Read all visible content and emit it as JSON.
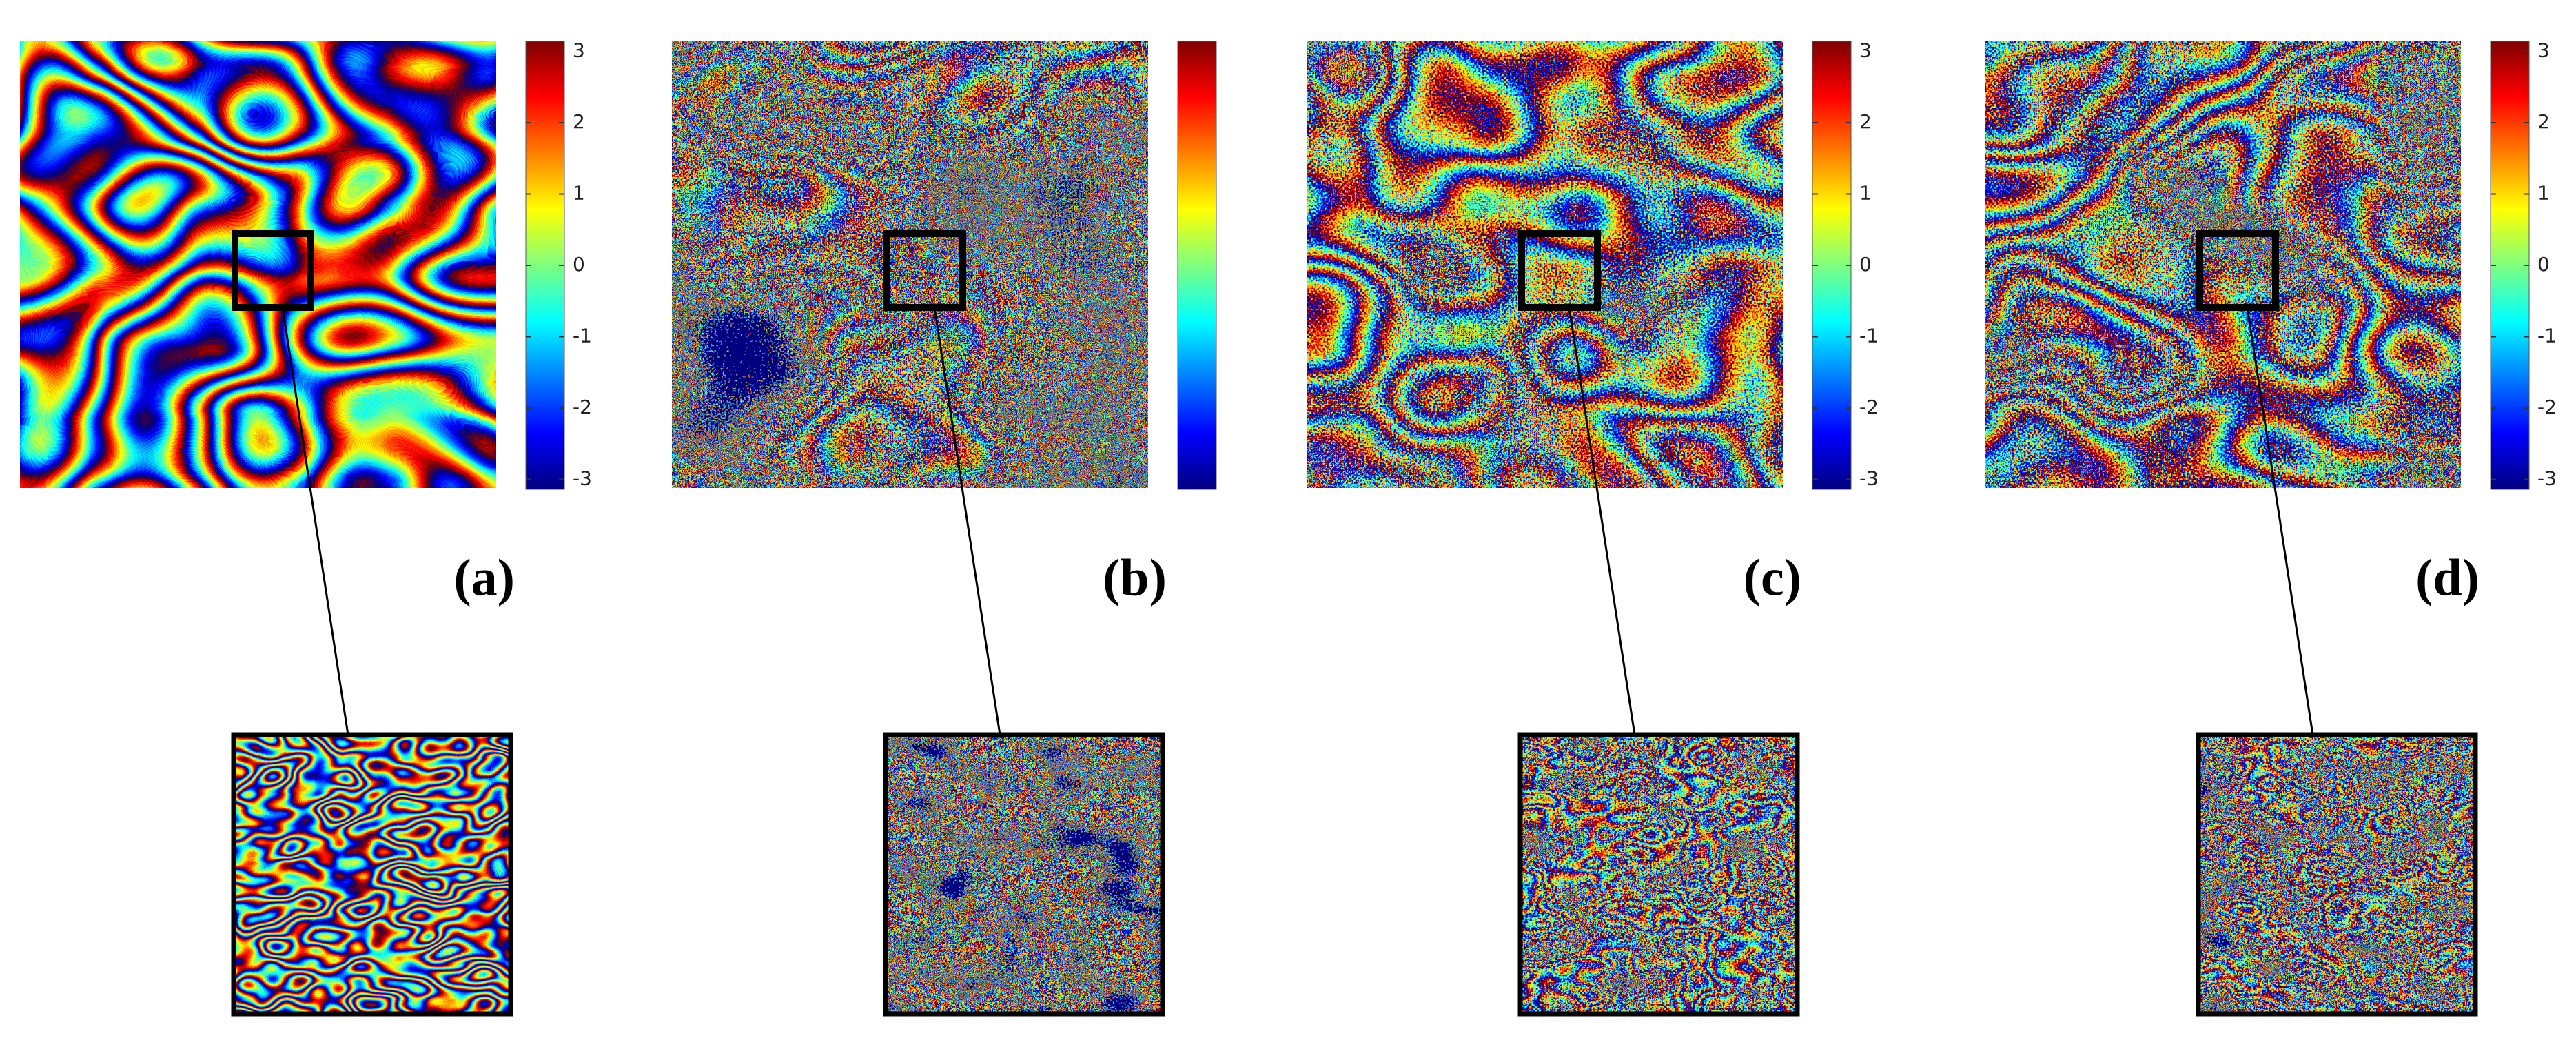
{
  "panels": [
    {
      "label": "(a)",
      "colorbar": {
        "clim": [
          -3.14,
          3.14
        ],
        "ticks": [
          3,
          2,
          1,
          0,
          -1,
          -2,
          -3
        ]
      }
    },
    {
      "label": "(b)",
      "colorbar": {
        "clim": [
          -3.14,
          3.14
        ]
      }
    },
    {
      "label": "(c)",
      "colorbar": {
        "clim": [
          -3.14,
          3.14
        ],
        "ticks": [
          3,
          2,
          1,
          0,
          -1,
          -2,
          -3
        ]
      }
    },
    {
      "label": "(d)",
      "colorbar": {
        "clim": [
          -3.14,
          3.14
        ],
        "ticks": [
          3,
          2,
          1,
          0,
          -1,
          -2,
          -3
        ]
      }
    }
  ]
}
